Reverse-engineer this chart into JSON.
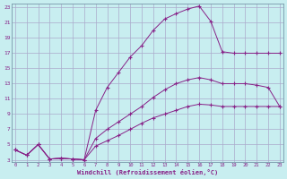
{
  "xlabel": "Windchill (Refroidissement éolien,°C)",
  "bg_color": "#c8eef0",
  "grid_color": "#aaaacc",
  "line_color": "#882288",
  "xmin": 0,
  "xmax": 23,
  "ymin": 3,
  "ymax": 23,
  "yticks": [
    3,
    5,
    7,
    9,
    11,
    13,
    15,
    17,
    19,
    21,
    23
  ],
  "xticks": [
    0,
    1,
    2,
    3,
    4,
    5,
    6,
    7,
    8,
    9,
    10,
    11,
    12,
    13,
    14,
    15,
    16,
    17,
    18,
    19,
    20,
    21,
    22,
    23
  ],
  "curve1_x": [
    0,
    1,
    2,
    3,
    4,
    5,
    6,
    7,
    8,
    9,
    10,
    11,
    12,
    13,
    14,
    15,
    16,
    17,
    18,
    19,
    20,
    21,
    22,
    23
  ],
  "curve1_y": [
    4.3,
    3.6,
    5.0,
    3.1,
    3.2,
    3.1,
    3.0,
    9.5,
    12.5,
    14.5,
    16.5,
    18.0,
    20.0,
    21.5,
    22.2,
    22.8,
    23.2,
    21.2,
    17.2,
    17.0,
    17.0,
    17.0,
    17.0,
    17.0
  ],
  "curve2_x": [
    0,
    1,
    2,
    3,
    4,
    5,
    6,
    7,
    8,
    9,
    10,
    11,
    12,
    13,
    14,
    15,
    16,
    17,
    18,
    19,
    20,
    21,
    22,
    23
  ],
  "curve2_y": [
    4.3,
    3.6,
    5.0,
    3.1,
    3.2,
    3.1,
    3.0,
    5.8,
    7.0,
    8.0,
    9.0,
    10.0,
    11.2,
    12.2,
    13.0,
    13.5,
    13.8,
    13.5,
    13.0,
    13.0,
    13.0,
    12.8,
    12.5,
    10.0
  ],
  "curve3_x": [
    0,
    1,
    2,
    3,
    4,
    5,
    6,
    7,
    8,
    9,
    10,
    11,
    12,
    13,
    14,
    15,
    16,
    17,
    18,
    19,
    20,
    21,
    22,
    23
  ],
  "curve3_y": [
    4.3,
    3.6,
    5.0,
    3.1,
    3.2,
    3.1,
    3.0,
    4.8,
    5.5,
    6.2,
    7.0,
    7.8,
    8.5,
    9.0,
    9.5,
    10.0,
    10.3,
    10.2,
    10.0,
    10.0,
    10.0,
    10.0,
    10.0,
    10.0
  ]
}
